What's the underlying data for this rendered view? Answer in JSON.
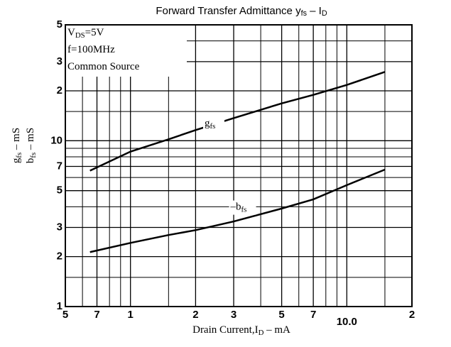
{
  "chart_data": {
    "type": "line",
    "title": [
      "Forward Transfer Admittance y",
      "fs",
      " – I",
      "D"
    ],
    "conditions": [
      [
        "V",
        "DS",
        "=5V"
      ],
      [
        "f=100MHz"
      ],
      [
        "Common Source"
      ]
    ],
    "y_label": [
      [
        "g",
        "fs",
        " – mS"
      ],
      [
        "b",
        "fs",
        " – mS"
      ]
    ],
    "x_label": [
      "Drain Current,I",
      "D",
      " – mA"
    ],
    "log_x": true,
    "log_y": true,
    "grid": true,
    "xlim": [
      0.5,
      20
    ],
    "ylim": [
      1,
      50
    ],
    "xticks": [
      {
        "value": 0.5,
        "label": "5"
      },
      {
        "value": 0.7,
        "label": "7"
      },
      1.0,
      2,
      3,
      {
        "value": 5,
        "label": "5"
      },
      7,
      {
        "value": 10,
        "label": "10.0"
      },
      {
        "value": 20,
        "label": "2"
      }
    ],
    "yticks": [
      1,
      2,
      3,
      5,
      7,
      10,
      {
        "value": 20,
        "label": "2"
      },
      {
        "value": 30,
        "label": "3"
      },
      {
        "value": 50,
        "label": "5"
      }
    ],
    "xminor": [
      0.6,
      0.8,
      0.9,
      1.5,
      4,
      6,
      8,
      9,
      15
    ],
    "yminor": [
      1.5,
      4,
      6,
      8,
      9,
      15,
      40
    ],
    "x": [
      0.65,
      1,
      1.5,
      2,
      3,
      5,
      7,
      10,
      15
    ],
    "series": [
      {
        "name": [
          "g",
          "fs"
        ],
        "color": "#000000",
        "values": [
          6.6,
          8.6,
          10.2,
          11.6,
          13.7,
          16.8,
          18.9,
          21.7,
          26
        ]
      },
      {
        "name": [
          "–b",
          "fs"
        ],
        "color": "#000000",
        "values": [
          2.13,
          2.42,
          2.7,
          2.89,
          3.26,
          3.9,
          4.43,
          5.4,
          6.7
        ]
      }
    ]
  }
}
